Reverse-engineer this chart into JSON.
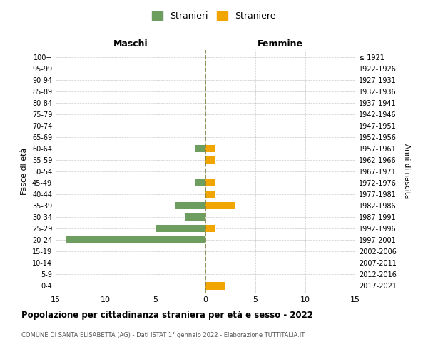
{
  "age_groups": [
    "0-4",
    "5-9",
    "10-14",
    "15-19",
    "20-24",
    "25-29",
    "30-34",
    "35-39",
    "40-44",
    "45-49",
    "50-54",
    "55-59",
    "60-64",
    "65-69",
    "70-74",
    "75-79",
    "80-84",
    "85-89",
    "90-94",
    "95-99",
    "100+"
  ],
  "birth_years": [
    "2017-2021",
    "2012-2016",
    "2007-2011",
    "2002-2006",
    "1997-2001",
    "1992-1996",
    "1987-1991",
    "1982-1986",
    "1977-1981",
    "1972-1976",
    "1967-1971",
    "1962-1966",
    "1957-1961",
    "1952-1956",
    "1947-1951",
    "1942-1946",
    "1937-1941",
    "1932-1936",
    "1927-1931",
    "1922-1926",
    "≤ 1921"
  ],
  "maschi": [
    0,
    0,
    0,
    0,
    14,
    5,
    2,
    3,
    0,
    1,
    0,
    0,
    1,
    0,
    0,
    0,
    0,
    0,
    0,
    0,
    0
  ],
  "femmine": [
    2,
    0,
    0,
    0,
    0,
    1,
    0,
    3,
    1,
    1,
    0,
    1,
    1,
    0,
    0,
    0,
    0,
    0,
    0,
    0,
    0
  ],
  "maschi_color": "#6e9e5f",
  "femmine_color": "#f0a500",
  "background_color": "#ffffff",
  "grid_color": "#cccccc",
  "center_line_color": "#808040",
  "title": "Popolazione per cittadinanza straniera per età e sesso - 2022",
  "subtitle": "COMUNE DI SANTA ELISABETTA (AG) - Dati ISTAT 1° gennaio 2022 - Elaborazione TUTTITALIA.IT",
  "xlabel_left": "Maschi",
  "xlabel_right": "Femmine",
  "ylabel_left": "Fasce di età",
  "ylabel_right": "Anni di nascita",
  "legend_stranieri": "Stranieri",
  "legend_straniere": "Straniere",
  "xlim": 15
}
